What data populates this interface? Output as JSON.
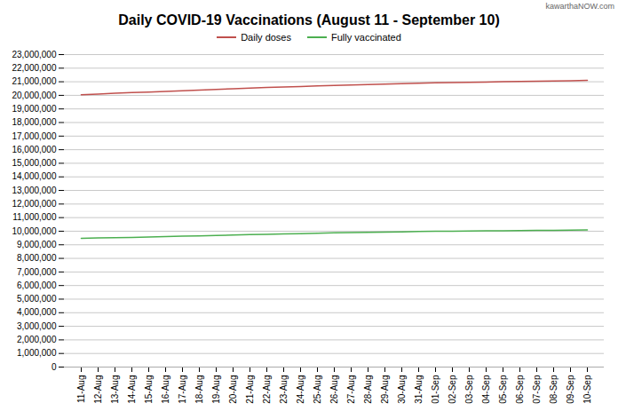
{
  "chart_data": {
    "type": "line",
    "title": "Daily COVID-19 Vaccinations (August 11 - September 10)",
    "annotations": [
      "kawarthaNOW.com"
    ],
    "categories": [
      "11-Aug",
      "12-Aug",
      "13-Aug",
      "14-Aug",
      "15-Aug",
      "16-Aug",
      "17-Aug",
      "18-Aug",
      "19-Aug",
      "20-Aug",
      "21-Aug",
      "22-Aug",
      "23-Aug",
      "24-Aug",
      "25-Aug",
      "26-Aug",
      "27-Aug",
      "28-Aug",
      "29-Aug",
      "30-Aug",
      "31-Aug",
      "01-Sep",
      "02-Sep",
      "03-Sep",
      "04-Sep",
      "05-Sep",
      "06-Sep",
      "07-Sep",
      "08-Sep",
      "09-Sep",
      "10-Sep"
    ],
    "series": [
      {
        "name": "Daily doses",
        "color": "#C0504D",
        "values": [
          20050000,
          20100000,
          20150000,
          20200000,
          20240000,
          20290000,
          20340000,
          20390000,
          20440000,
          20490000,
          20540000,
          20580000,
          20610000,
          20650000,
          20690000,
          20730000,
          20760000,
          20790000,
          20830000,
          20860000,
          20890000,
          20920000,
          20940000,
          20960000,
          20980000,
          21000000,
          21020000,
          21040000,
          21060000,
          21080000,
          21100000
        ]
      },
      {
        "name": "Fully vaccinated",
        "color": "#4CAF50",
        "values": [
          9480000,
          9500000,
          9520000,
          9545000,
          9570000,
          9600000,
          9630000,
          9660000,
          9690000,
          9720000,
          9750000,
          9775000,
          9800000,
          9825000,
          9850000,
          9875000,
          9895000,
          9915000,
          9935000,
          9955000,
          9975000,
          9990000,
          10005000,
          10015000,
          10025000,
          10035000,
          10045000,
          10055000,
          10065000,
          10075000,
          10100000
        ]
      }
    ],
    "ylim": [
      0,
      23000000
    ],
    "yticks": [
      0,
      {
        "value": 1000000,
        "label": "1,000,000"
      },
      {
        "value": 2000000,
        "label": "2,000,000"
      },
      {
        "value": 3000000,
        "label": "3,000,000"
      },
      {
        "value": 4000000,
        "label": "4,000,000"
      },
      {
        "value": 5000000,
        "label": "5,000,000"
      },
      {
        "value": 6000000,
        "label": "6,000,000"
      },
      {
        "value": 7000000,
        "label": "7,000,000"
      },
      {
        "value": 8000000,
        "label": "8,000,000"
      },
      {
        "value": 9000000,
        "label": "9,000,000"
      },
      {
        "value": 10000000,
        "label": "10,000,000"
      },
      {
        "value": 11000000,
        "label": "11,000,000"
      },
      {
        "value": 12000000,
        "label": "12,000,000"
      },
      {
        "value": 13000000,
        "label": "13,000,000"
      },
      {
        "value": 14000000,
        "label": "14,000,000"
      },
      {
        "value": 15000000,
        "label": "15,000,000"
      },
      {
        "value": 16000000,
        "label": "16,000,000"
      },
      {
        "value": 17000000,
        "label": "17,000,000"
      },
      {
        "value": 18000000,
        "label": "18,000,000"
      },
      {
        "value": 19000000,
        "label": "19,000,000"
      },
      {
        "value": 20000000,
        "label": "20,000,000"
      },
      {
        "value": 21000000,
        "label": "21,000,000"
      },
      {
        "value": 22000000,
        "label": "22,000,000"
      },
      {
        "value": 23000000,
        "label": "23,000,000"
      }
    ],
    "grid": true,
    "legend": "top"
  }
}
